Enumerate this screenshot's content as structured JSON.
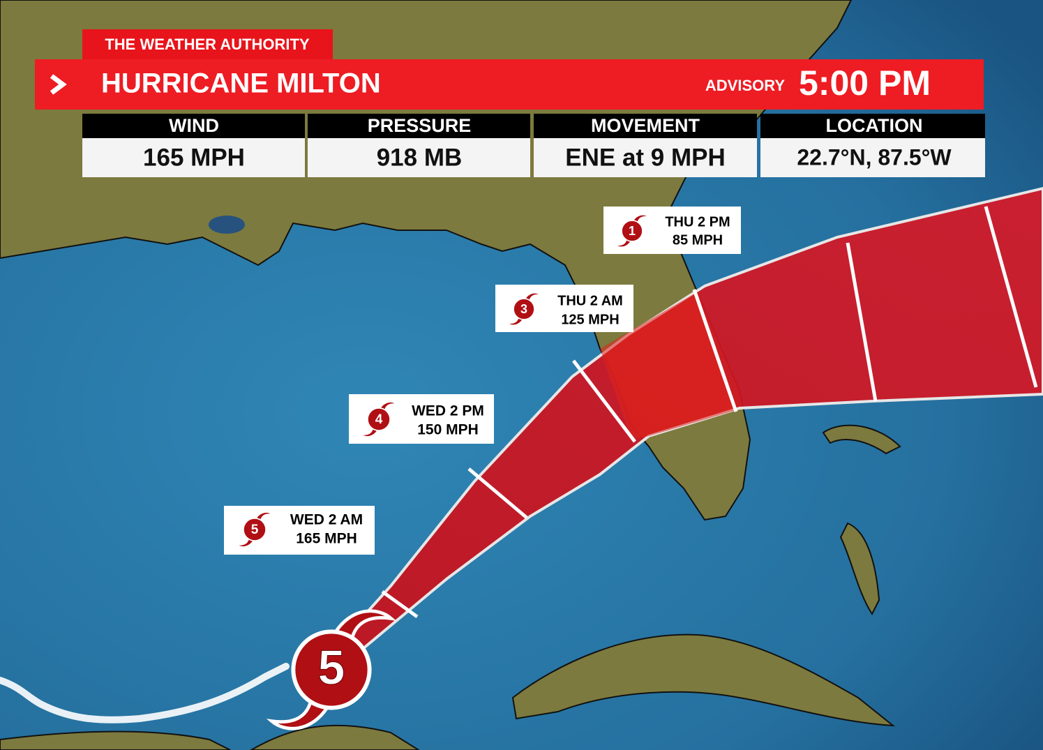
{
  "header": {
    "brand": "THE WEATHER AUTHORITY",
    "title": "HURRICANE MILTON",
    "advisory_label": "ADVISORY",
    "advisory_time": "5:00 PM"
  },
  "stats": [
    {
      "label": "WIND",
      "value": "165 MPH"
    },
    {
      "label": "PRESSURE",
      "value": "918 MB"
    },
    {
      "label": "MOVEMENT",
      "value": "ENE at 9 MPH"
    },
    {
      "label": "LOCATION",
      "value": "22.7°N, 87.5°W"
    }
  ],
  "forecast_points": [
    {
      "time": "THU 2 PM",
      "wind": "85 MPH",
      "category": "1"
    },
    {
      "time": "THU 2 AM",
      "wind": "125 MPH",
      "category": "3"
    },
    {
      "time": "WED 2 PM",
      "wind": "150 MPH",
      "category": "4"
    },
    {
      "time": "WED 2 AM",
      "wind": "165 MPH",
      "category": "5"
    }
  ],
  "current_category": "5"
}
